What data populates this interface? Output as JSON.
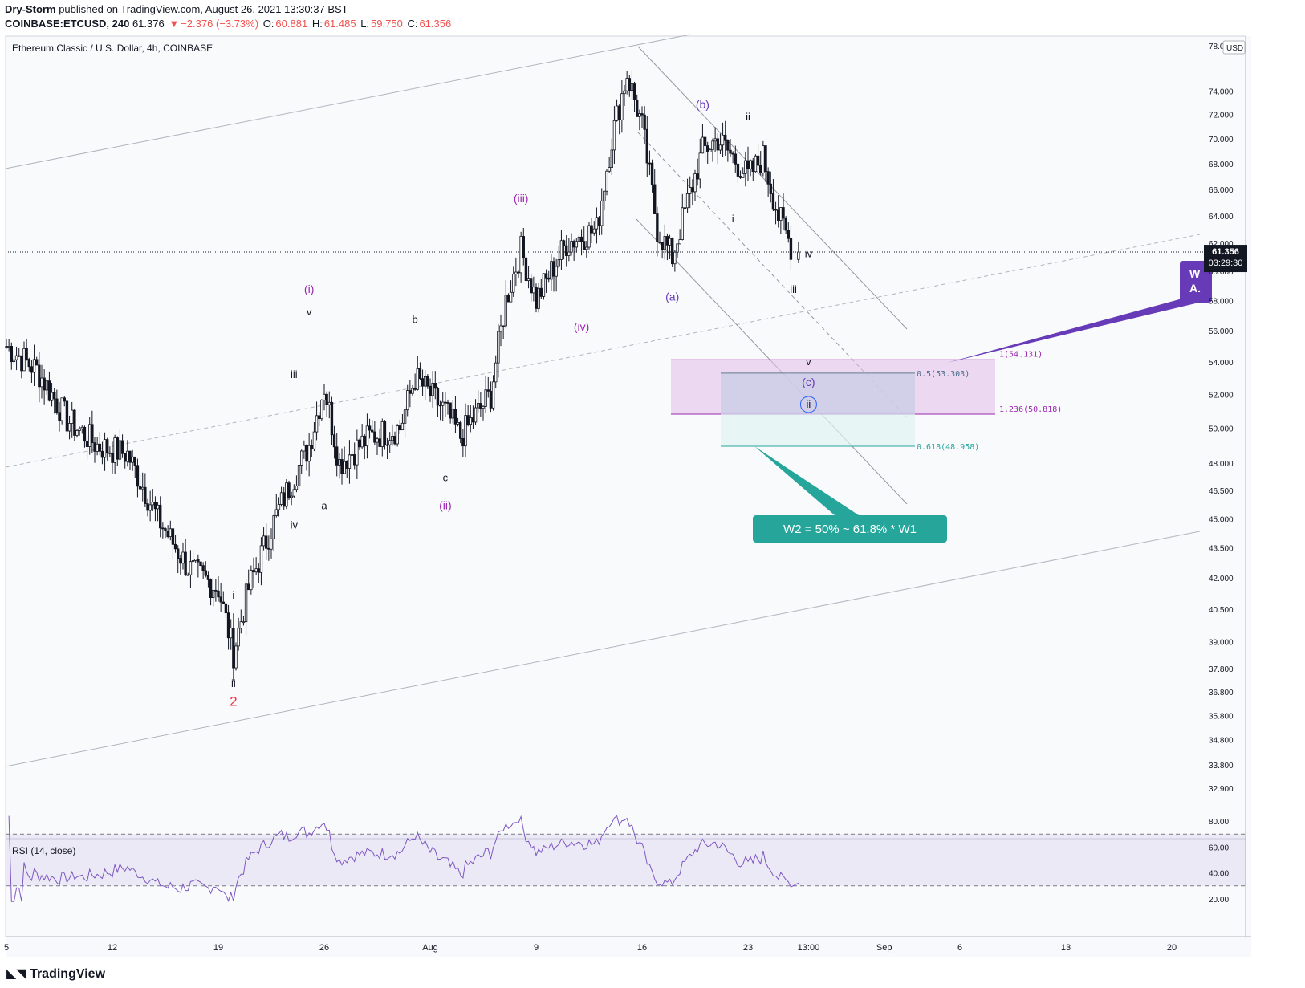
{
  "header": {
    "author": "Dry-Storm",
    "published_text": "published on TradingView.com, August 26, 2021 13:30:37 BST",
    "symbol": "COINBASE:ETCUSD, 240",
    "last": "61.376",
    "change_arrow": "▼",
    "change": "−2.376 (−3.73%)",
    "o_label": "O:",
    "o_value": "60.881",
    "h_label": "H:",
    "h_value": "61.485",
    "l_label": "L:",
    "l_value": "59.750",
    "c_label": "C:",
    "c_value": "61.356"
  },
  "legend_title": "Ethereum Classic / U.S. Dollar, 4h, COINBASE",
  "currency": "USD",
  "price_tag": {
    "value": "61.356",
    "countdown": "03:29:30"
  },
  "rsi": {
    "title": "RSI (14, close)",
    "ticks": [
      "80.00",
      "60.00",
      "40.00",
      "20.00"
    ]
  },
  "annotations": {
    "callout": "W2 = 50% ~ 61.8% * W1",
    "side_tag": "W\nA."
  },
  "fib_labels": {
    "f1": "1(54.131)",
    "f0_5": "0.5(53.303)",
    "f1_236": "1.236(50.818)",
    "f0_618": "0.618(48.958)"
  },
  "footer": {
    "logo": "TradingView"
  },
  "colors": {
    "up": "#131722",
    "down": "#131722",
    "wave_purple": "#9c27b0",
    "corr_purple": "#673ab7",
    "teal": "#26a69a",
    "red": "#f23645",
    "zone_purple": "#e1bee7",
    "zone_teal": "#e0f2f1"
  },
  "chart_data": {
    "type": "candlestick",
    "title": "Ethereum Classic / U.S. Dollar, 4h, COINBASE",
    "y_scale": "log",
    "ylim": [
      32.5,
      78.5
    ],
    "y_ticks": [
      "78.000",
      "74.000",
      "72.000",
      "70.000",
      "68.000",
      "66.000",
      "64.000",
      "62.000",
      "60.000",
      "58.000",
      "56.000",
      "54.000",
      "52.000",
      "50.000",
      "48.000",
      "46.500",
      "45.000",
      "43.500",
      "42.000",
      "40.500",
      "39.000",
      "37.800",
      "36.800",
      "35.800",
      "34.800",
      "33.800",
      "32.900"
    ],
    "x_ticks": [
      "5",
      "12",
      "19",
      "26",
      "Aug",
      "9",
      "16",
      "23",
      "13:00",
      "Sep",
      "6",
      "13",
      "20"
    ],
    "approx_close_path": [
      [
        "2021-07-05",
        55.0
      ],
      [
        "2021-07-07",
        53.5
      ],
      [
        "2021-07-09",
        50.5
      ],
      [
        "2021-07-11",
        49.0
      ],
      [
        "2021-07-13",
        48.5
      ],
      [
        "2021-07-15",
        45.0
      ],
      [
        "2021-07-17",
        42.5
      ],
      [
        "2021-07-19",
        41.5
      ],
      [
        "2021-07-20",
        38.5
      ],
      [
        "2021-07-21",
        41.5
      ],
      [
        "2021-07-23",
        45.5
      ],
      [
        "2021-07-25",
        49.0
      ],
      [
        "2021-07-26",
        52.5
      ],
      [
        "2021-07-27",
        48.0
      ],
      [
        "2021-07-29",
        49.5
      ],
      [
        "2021-07-31",
        50.0
      ],
      [
        "2021-08-01",
        53.0
      ],
      [
        "2021-08-03",
        51.0
      ],
      [
        "2021-08-04",
        49.5
      ],
      [
        "2021-08-06",
        52.0
      ],
      [
        "2021-08-07",
        58.0
      ],
      [
        "2021-08-08",
        61.5
      ],
      [
        "2021-08-09",
        58.0
      ],
      [
        "2021-08-11",
        62.0
      ],
      [
        "2021-08-13",
        63.0
      ],
      [
        "2021-08-14",
        70.0
      ],
      [
        "2021-08-15",
        75.5
      ],
      [
        "2021-08-16",
        71.0
      ],
      [
        "2021-08-17",
        63.0
      ],
      [
        "2021-08-18",
        61.0
      ],
      [
        "2021-08-19",
        65.0
      ],
      [
        "2021-08-20",
        69.0
      ],
      [
        "2021-08-21",
        70.0
      ],
      [
        "2021-08-22",
        68.5
      ],
      [
        "2021-08-23",
        67.0
      ],
      [
        "2021-08-24",
        68.5
      ],
      [
        "2021-08-25",
        64.0
      ],
      [
        "2021-08-26",
        61.356
      ]
    ],
    "levels": {
      "fib_1": 54.131,
      "fib_0_5": 53.303,
      "fib_1_236": 50.818,
      "fib_0_618": 48.958,
      "last_price": 61.356
    },
    "wave_labels": [
      {
        "text": "2",
        "date": "2021-07-20",
        "price": 36.2
      },
      {
        "text": "i",
        "date": "2021-07-20",
        "price": 41.0
      },
      {
        "text": "ii",
        "date": "2021-07-20",
        "price": 37.0
      },
      {
        "text": "iii",
        "date": "2021-07-24",
        "price": 53.0
      },
      {
        "text": "iv",
        "date": "2021-07-24",
        "price": 44.5
      },
      {
        "text": "v",
        "date": "2021-07-25",
        "price": 57.0
      },
      {
        "text": "(i)",
        "date": "2021-07-25",
        "price": 58.5
      },
      {
        "text": "a",
        "date": "2021-07-26",
        "price": 45.5
      },
      {
        "text": "b",
        "date": "2021-08-01",
        "price": 56.5
      },
      {
        "text": "c",
        "date": "2021-08-03",
        "price": 47.0
      },
      {
        "text": "(ii)",
        "date": "2021-08-03",
        "price": 45.5
      },
      {
        "text": "(iii)",
        "date": "2021-08-08",
        "price": 65.0
      },
      {
        "text": "(iv)",
        "date": "2021-08-12",
        "price": 56.0
      },
      {
        "text": "(a)",
        "date": "2021-08-18",
        "price": 58.0
      },
      {
        "text": "(b)",
        "date": "2021-08-20",
        "price": 72.5
      },
      {
        "text": "ii",
        "date": "2021-08-23",
        "price": 71.5
      },
      {
        "text": "i",
        "date": "2021-08-22",
        "price": 63.5
      },
      {
        "text": "iii",
        "date": "2021-08-26",
        "price": 58.5
      },
      {
        "text": "iv",
        "date": "2021-08-27",
        "price": 61.0
      },
      {
        "text": "v",
        "date": "2021-08-27",
        "price": 53.8
      },
      {
        "text": "(c)",
        "date": "2021-08-27",
        "price": 52.5
      },
      {
        "text": "ii",
        "date": "2021-08-27",
        "price": 51.2
      }
    ],
    "rsi_ylim": [
      15,
      85
    ],
    "rsi_levels": [
      70,
      50,
      30
    ],
    "grid": false
  }
}
